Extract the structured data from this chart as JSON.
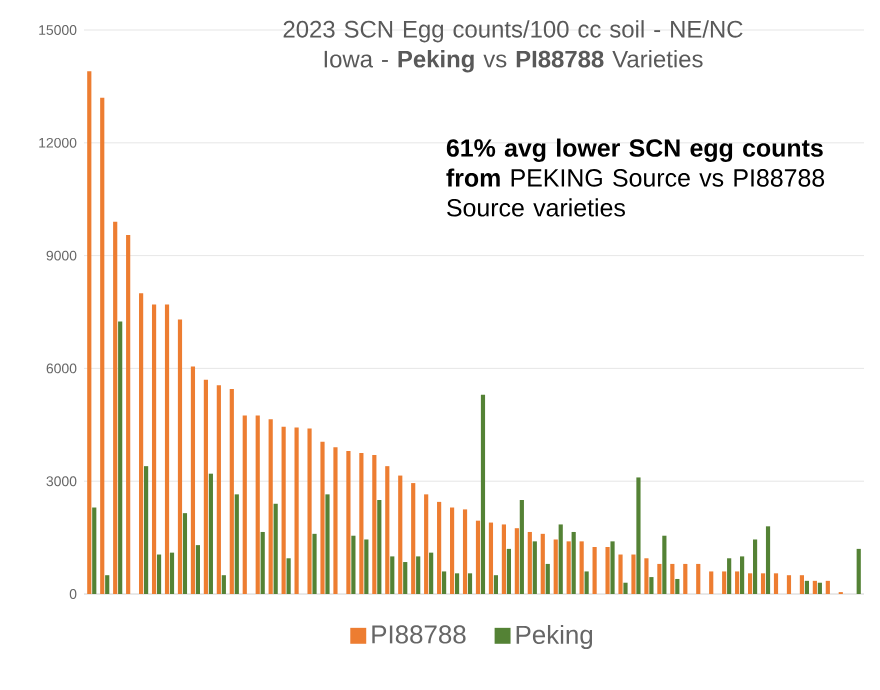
{
  "chart_data": {
    "type": "bar",
    "title": "2023 SCN Egg counts/100 cc soil - NE/NC Iowa - **Peking** vs **PI88788** Varieties",
    "categories": [
      null,
      null,
      null,
      null,
      null,
      null,
      null,
      null,
      null,
      null,
      null,
      null,
      null,
      null,
      null,
      null,
      null,
      null,
      null,
      null,
      null,
      null,
      null,
      null,
      null,
      null,
      null,
      null,
      null,
      null,
      null,
      null,
      null,
      null,
      null,
      null,
      null,
      null,
      null,
      null,
      null,
      null,
      null,
      null,
      null,
      null,
      null,
      null,
      null,
      null,
      null,
      null,
      null,
      null,
      null,
      null,
      null,
      null,
      null,
      null
    ],
    "series": [
      {
        "name": "PI88788",
        "color": "#ed7d31",
        "values": [
          13900,
          13200,
          9900,
          9550,
          8000,
          7700,
          7700,
          7300,
          6050,
          5700,
          5550,
          5450,
          4750,
          4750,
          4650,
          4450,
          4430,
          4400,
          4050,
          3900,
          3800,
          3750,
          3700,
          3400,
          3150,
          2950,
          2650,
          2450,
          2300,
          2250,
          1950,
          1900,
          1850,
          1750,
          1650,
          1600,
          1450,
          1400,
          1400,
          1250,
          1250,
          1050,
          1050,
          950,
          800,
          800,
          800,
          800,
          600,
          600,
          600,
          550,
          550,
          550,
          500,
          500,
          350,
          350,
          50,
          null
        ]
      },
      {
        "name": "Peking",
        "color": "#548235",
        "values": [
          2300,
          500,
          7250,
          null,
          3400,
          1050,
          1100,
          2150,
          1300,
          3200,
          500,
          2650,
          null,
          1650,
          2400,
          950,
          null,
          1600,
          2650,
          null,
          1550,
          1450,
          2500,
          1000,
          850,
          1000,
          1100,
          600,
          550,
          550,
          5300,
          500,
          1200,
          2500,
          1400,
          800,
          1850,
          1650,
          600,
          null,
          1400,
          300,
          3100,
          450,
          1550,
          400,
          null,
          null,
          null,
          950,
          1000,
          1450,
          1800,
          null,
          null,
          350,
          300,
          null,
          null,
          1200
        ]
      }
    ],
    "ylim": [
      0,
      15000
    ],
    "yticks": [
      0,
      3000,
      6000,
      9000,
      12000,
      15000
    ],
    "grid": "y",
    "legend": "bottom",
    "annotations": [
      "**61% avg lower SCN egg counts from** PEKING Source vs PI88788 Source varieties"
    ]
  }
}
